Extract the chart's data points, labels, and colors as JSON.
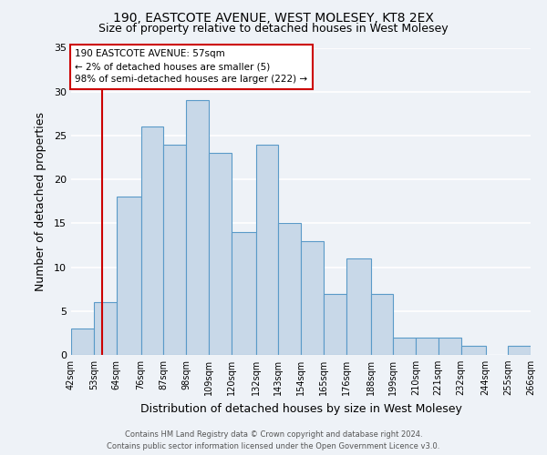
{
  "title": "190, EASTCOTE AVENUE, WEST MOLESEY, KT8 2EX",
  "subtitle": "Size of property relative to detached houses in West Molesey",
  "xlabel": "Distribution of detached houses by size in West Molesey",
  "ylabel": "Number of detached properties",
  "bar_edges": [
    42,
    53,
    64,
    76,
    87,
    98,
    109,
    120,
    132,
    143,
    154,
    165,
    176,
    188,
    199,
    210,
    221,
    232,
    244,
    255,
    266
  ],
  "bar_heights": [
    3,
    6,
    18,
    26,
    24,
    29,
    23,
    14,
    24,
    15,
    13,
    7,
    11,
    7,
    2,
    2,
    2,
    1,
    0,
    1
  ],
  "bar_color": "#c8d8e8",
  "bar_edge_color": "#5a9ac8",
  "tick_labels": [
    "42sqm",
    "53sqm",
    "64sqm",
    "76sqm",
    "87sqm",
    "98sqm",
    "109sqm",
    "120sqm",
    "132sqm",
    "143sqm",
    "154sqm",
    "165sqm",
    "176sqm",
    "188sqm",
    "199sqm",
    "210sqm",
    "221sqm",
    "232sqm",
    "244sqm",
    "255sqm",
    "266sqm"
  ],
  "ylim": [
    0,
    35
  ],
  "yticks": [
    0,
    5,
    10,
    15,
    20,
    25,
    30,
    35
  ],
  "property_line_x": 57,
  "annotation_line1": "190 EASTCOTE AVENUE: 57sqm",
  "annotation_line2": "← 2% of detached houses are smaller (5)",
  "annotation_line3": "98% of semi-detached houses are larger (222) →",
  "annotation_box_color": "#ffffff",
  "annotation_box_edge": "#cc0000",
  "property_line_color": "#cc0000",
  "footer_line1": "Contains HM Land Registry data © Crown copyright and database right 2024.",
  "footer_line2": "Contains public sector information licensed under the Open Government Licence v3.0.",
  "background_color": "#eef2f7",
  "grid_color": "#ffffff",
  "title_fontsize": 10,
  "subtitle_fontsize": 9,
  "axis_label_fontsize": 9,
  "tick_fontsize": 7,
  "ytick_fontsize": 8
}
